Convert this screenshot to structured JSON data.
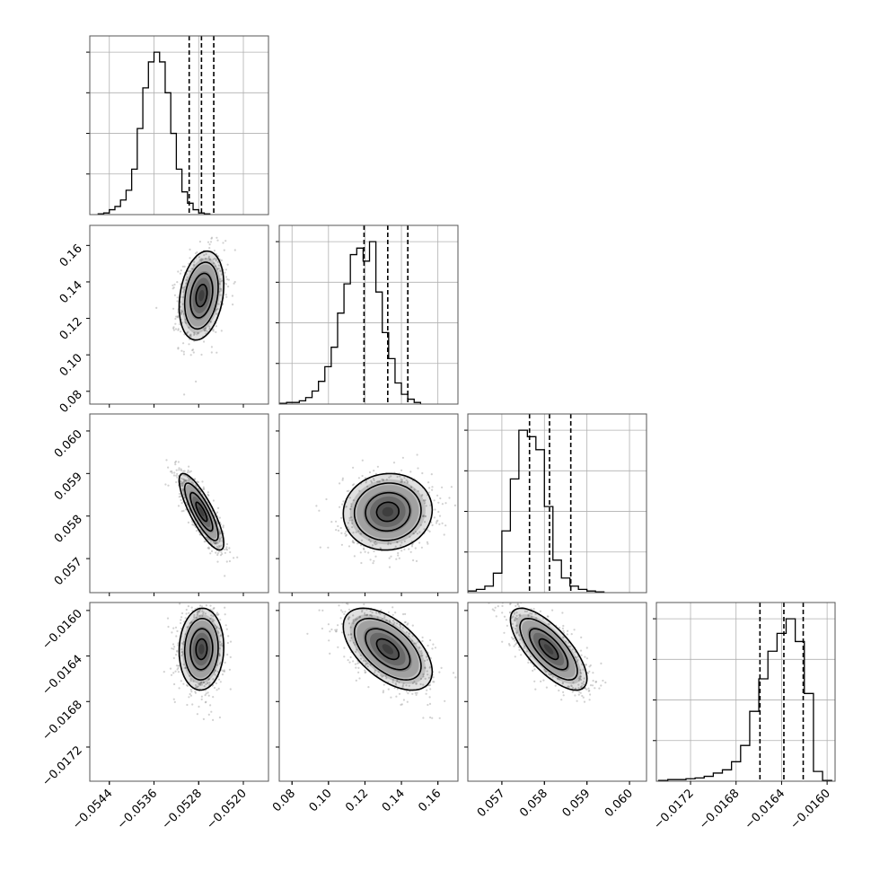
{
  "chart_data": {
    "type": "corner",
    "parameters": [
      {
        "xlim": [
          -0.05475,
          -0.05155
        ],
        "xticks": [
          -0.0544,
          -0.0536,
          -0.0528,
          -0.052
        ],
        "xtick_labels": [
          "−0.0544",
          "−0.0536",
          "−0.0528",
          "−0.0520"
        ],
        "quantiles": [
          -0.05297,
          -0.05275,
          -0.05253
        ],
        "hist_edges_start": -0.0546,
        "hist_bin_width": 0.0001,
        "hist_counts": [
          0.5,
          1,
          3,
          5,
          9,
          15,
          28,
          53,
          78,
          94,
          100,
          94,
          75,
          50,
          28,
          14,
          7,
          3,
          1,
          0.5
        ]
      },
      {
        "xlim": [
          0.073,
          0.171
        ],
        "ticks": [
          0.08,
          0.1,
          0.12,
          0.14,
          0.16
        ],
        "tick_labels": [
          "0.08",
          "0.10",
          "0.12",
          "0.14",
          "0.16"
        ],
        "quantiles": [
          0.1195,
          0.1325,
          0.1435
        ],
        "hist_edges_start": 0.0735,
        "hist_bin_width": 0.0035,
        "hist_counts": [
          0.5,
          1,
          1,
          2,
          4,
          8,
          14,
          23,
          35,
          56,
          74,
          92,
          96,
          88,
          100,
          69,
          44,
          28,
          13,
          6,
          3,
          1
        ]
      },
      {
        "xlim": [
          0.0562,
          0.0604
        ],
        "ticks": [
          0.057,
          0.058,
          0.059,
          0.06
        ],
        "tick_labels": [
          "0.057",
          "0.058",
          "0.059",
          "0.060"
        ],
        "quantiles": [
          0.05765,
          0.05812,
          0.05862
        ],
        "hist_edges_start": 0.0562,
        "hist_bin_width": 0.0002,
        "hist_counts": [
          1,
          2,
          4,
          12,
          38,
          70,
          100,
          96,
          88,
          53,
          20,
          9,
          4,
          2,
          1,
          0.5
        ]
      },
      {
        "xlim": [
          -0.0175,
          -0.01593
        ],
        "ticks": [
          -0.0172,
          -0.0168,
          -0.0164,
          -0.016
        ],
        "tick_labels": [
          "−0.0172",
          "−0.0168",
          "−0.0164",
          "−0.0160"
        ],
        "quantiles": [
          -0.01659,
          -0.01638,
          -0.01621
        ],
        "hist_edges_start": -0.01748,
        "hist_bin_width": 8e-05,
        "hist_counts": [
          0.5,
          1,
          1,
          1.5,
          2,
          3,
          5,
          7,
          12,
          22,
          43,
          63,
          80,
          91,
          100,
          86,
          54,
          6,
          0.5
        ]
      }
    ],
    "pairs": [
      {
        "row": 1,
        "col": 0,
        "center": [
          -0.05275,
          0.1325
        ],
        "sd": [
          0.0002,
          0.0122
        ],
        "rho": 0.25
      },
      {
        "row": 2,
        "col": 0,
        "center": [
          -0.05275,
          0.0581
        ],
        "sd": [
          0.0002,
          0.00045
        ],
        "rho": -0.82
      },
      {
        "row": 2,
        "col": 1,
        "center": [
          0.1325,
          0.0581
        ],
        "sd": [
          0.0122,
          0.00045
        ],
        "rho": 0.05
      },
      {
        "row": 3,
        "col": 0,
        "center": [
          -0.05275,
          -0.01634
        ],
        "sd": [
          0.0002,
          0.00018
        ],
        "rho": 0.05
      },
      {
        "row": 3,
        "col": 1,
        "center": [
          0.1325,
          -0.01634
        ],
        "sd": [
          0.0122,
          0.00018
        ],
        "rho": -0.55
      },
      {
        "row": 3,
        "col": 2,
        "center": [
          0.0581,
          -0.01634
        ],
        "sd": [
          0.00045,
          0.00018
        ],
        "rho": -0.72
      }
    ],
    "contour_levels_sigma": [
      0.5,
      1.0,
      1.5,
      2.0
    ],
    "grid": true,
    "title": "",
    "colors": {
      "line": "#000000",
      "scatter": "#9a9a9a",
      "grid": "#b0b0b0",
      "density": "#000000"
    }
  }
}
